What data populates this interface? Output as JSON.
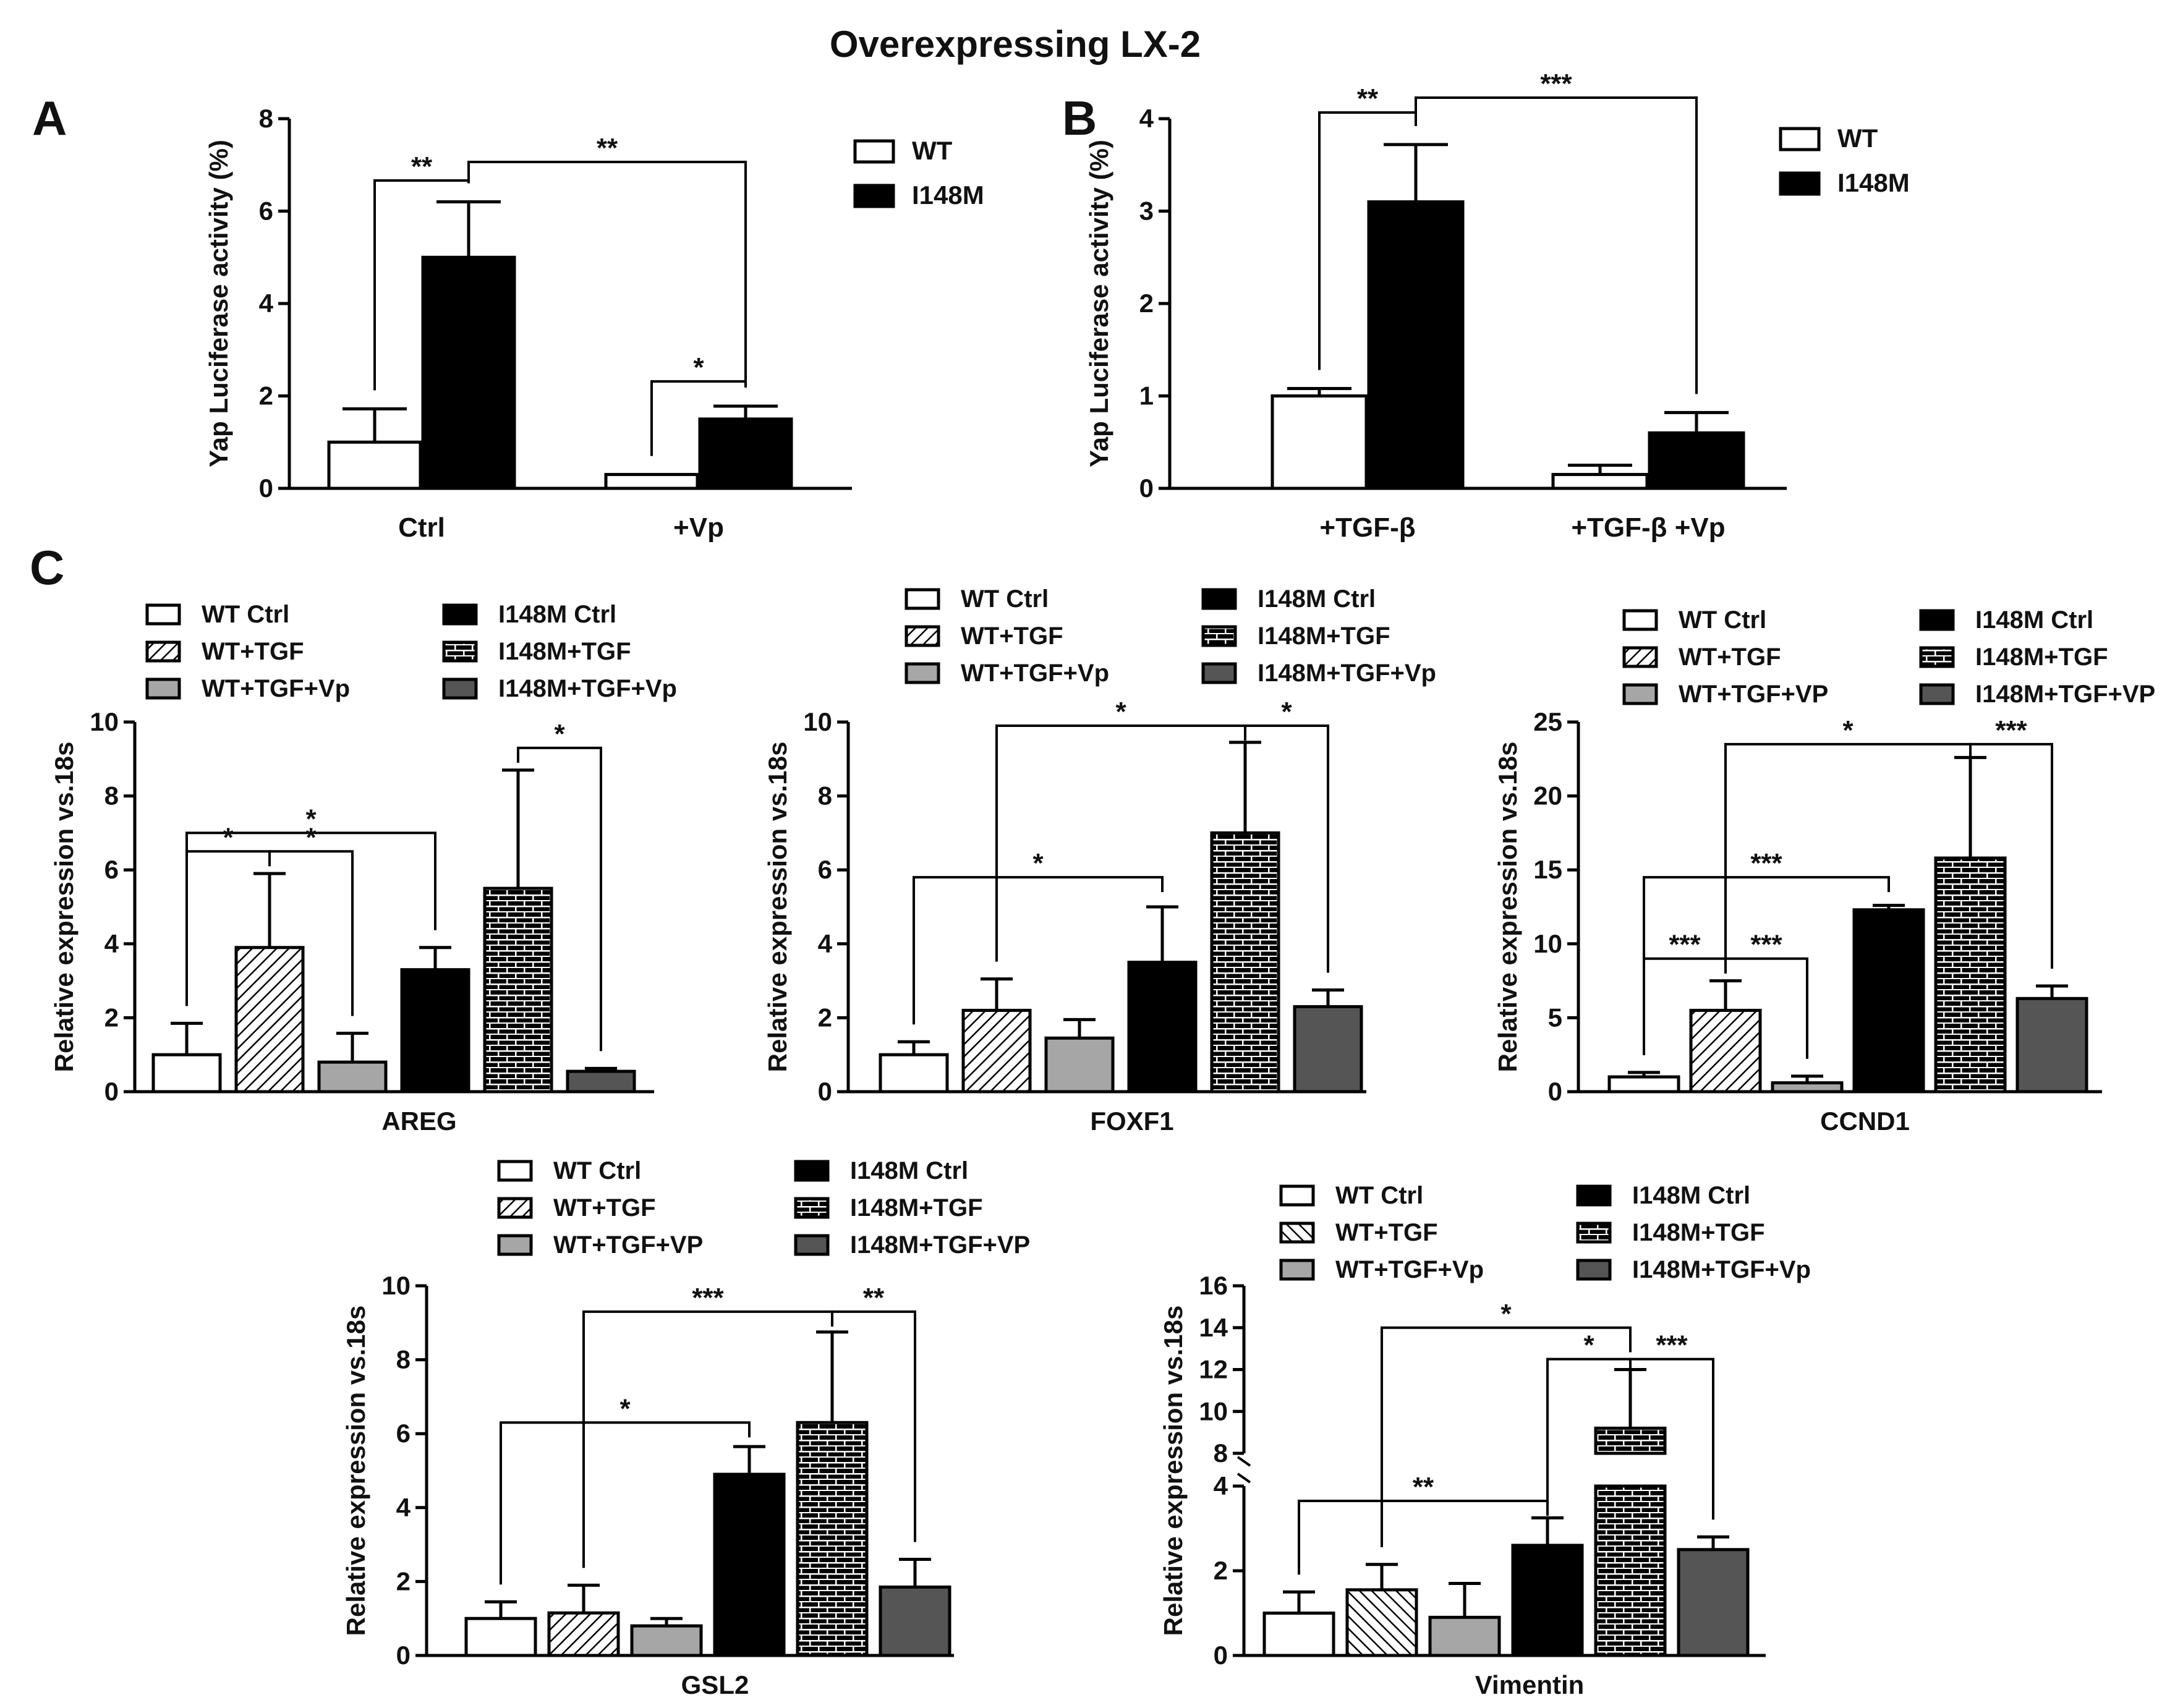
{
  "figure_title": "Overexpressing LX-2",
  "panel_letters": [
    "A",
    "B",
    "C"
  ],
  "chart_data": [
    {
      "id": "A",
      "type": "bar",
      "ylabel": "Yap Luciferase activity (%)",
      "ylim": [
        0,
        8
      ],
      "yticks": [
        "0",
        "2",
        "4",
        "6",
        "8"
      ],
      "categories": [
        "Ctrl",
        "+Vp"
      ],
      "series": [
        {
          "name": "WT",
          "values": [
            1.0,
            0.3
          ],
          "errors": [
            0.72,
            0.0
          ]
        },
        {
          "name": "I148M",
          "values": [
            5.0,
            1.5
          ],
          "errors": [
            1.2,
            0.28
          ]
        }
      ],
      "annotations": [
        {
          "text": "**",
          "from": [
            0,
            0
          ],
          "to": [
            0,
            1
          ]
        },
        {
          "text": "**",
          "from": [
            0,
            1
          ],
          "to": [
            1,
            1
          ]
        },
        {
          "text": "*",
          "from": [
            1,
            0
          ],
          "to": [
            1,
            1
          ]
        }
      ]
    },
    {
      "id": "B",
      "type": "bar",
      "ylabel": "Yap Luciferase activity (%)",
      "ylim": [
        0,
        4
      ],
      "yticks": [
        "0",
        "1",
        "2",
        "3",
        "4"
      ],
      "categories": [
        "+TGF-β",
        "+TGF-β +Vp"
      ],
      "series": [
        {
          "name": "WT",
          "values": [
            1.0,
            0.15
          ],
          "errors": [
            0.08,
            0.1
          ]
        },
        {
          "name": "I148M",
          "values": [
            3.1,
            0.6
          ],
          "errors": [
            0.62,
            0.22
          ]
        }
      ],
      "annotations": [
        {
          "text": "**",
          "from": [
            0,
            0
          ],
          "to": [
            0,
            1
          ]
        },
        {
          "text": "***",
          "from": [
            0,
            1
          ],
          "to": [
            1,
            1
          ]
        }
      ]
    },
    {
      "id": "AREG",
      "type": "bar",
      "xlabel": "AREG",
      "ylabel": "Relative expression vs.18s",
      "ylim": [
        0,
        10
      ],
      "yticks": [
        "0",
        "2",
        "4",
        "6",
        "8",
        "10"
      ],
      "series": [
        {
          "name": "WT Ctrl",
          "value": 1.0,
          "error": 0.85
        },
        {
          "name": "WT+TGF",
          "value": 3.9,
          "error": 2.0
        },
        {
          "name": "WT+TGF+Vp",
          "value": 0.8,
          "error": 0.78
        },
        {
          "name": "I148M Ctrl",
          "value": 3.3,
          "error": 0.6
        },
        {
          "name": "I148M+TGF",
          "value": 5.5,
          "error": 3.2
        },
        {
          "name": "I148M+TGF+Vp",
          "value": 0.55,
          "error": 0.08
        }
      ],
      "annotations": [
        {
          "text": "*",
          "from": 0,
          "to": 3,
          "y": 7.0
        },
        {
          "text": "*",
          "from": 0,
          "to": 1,
          "y": 6.5
        },
        {
          "text": "*",
          "from": 1,
          "to": 2,
          "y": 6.5
        },
        {
          "text": "*",
          "from": 4,
          "to": 5,
          "y": 9.3
        }
      ]
    },
    {
      "id": "FOXF1",
      "type": "bar",
      "xlabel": "FOXF1",
      "ylabel": "Relative expression vs.18s",
      "ylim": [
        0,
        10
      ],
      "yticks": [
        "0",
        "2",
        "4",
        "6",
        "8",
        "10"
      ],
      "series": [
        {
          "name": "WT Ctrl",
          "value": 1.0,
          "error": 0.35
        },
        {
          "name": "WT+TGF",
          "value": 2.2,
          "error": 0.85
        },
        {
          "name": "WT+TGF+Vp",
          "value": 1.45,
          "error": 0.5
        },
        {
          "name": "I148M Ctrl",
          "value": 3.5,
          "error": 1.5
        },
        {
          "name": "I148M+TGF",
          "value": 7.0,
          "error": 2.45
        },
        {
          "name": "I148M+TGF+Vp",
          "value": 2.3,
          "error": 0.45
        }
      ],
      "annotations": [
        {
          "text": "*",
          "from": 1,
          "to": 4,
          "y": 9.9
        },
        {
          "text": "*",
          "from": 4,
          "to": 5,
          "y": 9.9
        },
        {
          "text": "*",
          "from": 0,
          "to": 3,
          "y": 5.8
        }
      ]
    },
    {
      "id": "CCND1",
      "type": "bar",
      "xlabel": "CCND1",
      "ylabel": "Relative expression vs.18s",
      "ylim": [
        0,
        25
      ],
      "yticks": [
        "0",
        "5",
        "10",
        "15",
        "20",
        "25"
      ],
      "series": [
        {
          "name": "WT Ctrl",
          "value": 1.0,
          "error": 0.3
        },
        {
          "name": "WT+TGF",
          "value": 5.5,
          "error": 2.0
        },
        {
          "name": "WT+TGF+VP",
          "value": 0.6,
          "error": 0.45
        },
        {
          "name": "I148M Ctrl",
          "value": 12.3,
          "error": 0.3
        },
        {
          "name": "I148M+TGF",
          "value": 15.8,
          "error": 6.8
        },
        {
          "name": "I148M+TGF+VP",
          "value": 6.3,
          "error": 0.85
        }
      ],
      "annotations": [
        {
          "text": "*",
          "from": 1,
          "to": 4,
          "y": 23.5
        },
        {
          "text": "***",
          "from": 4,
          "to": 5,
          "y": 23.5
        },
        {
          "text": "***",
          "from": 0,
          "to": 3,
          "y": 14.5
        },
        {
          "text": "***",
          "from": 0,
          "to": 1,
          "y": 9.0
        },
        {
          "text": "***",
          "from": 1,
          "to": 2,
          "y": 9.0
        }
      ]
    },
    {
      "id": "GSL2",
      "type": "bar",
      "xlabel": "GSL2",
      "ylabel": "Relative expression vs.18s",
      "ylim": [
        0,
        10
      ],
      "yticks": [
        "0",
        "2",
        "4",
        "6",
        "8",
        "10"
      ],
      "series": [
        {
          "name": "WT Ctrl",
          "value": 1.0,
          "error": 0.45
        },
        {
          "name": "WT+TGF",
          "value": 1.15,
          "error": 0.75
        },
        {
          "name": "WT+TGF+VP",
          "value": 0.8,
          "error": 0.2
        },
        {
          "name": "I148M Ctrl",
          "value": 4.9,
          "error": 0.75
        },
        {
          "name": "I148M+TGF",
          "value": 6.3,
          "error": 2.45
        },
        {
          "name": "I148M+TGF+VP",
          "value": 1.85,
          "error": 0.75
        }
      ],
      "annotations": [
        {
          "text": "***",
          "from": 1,
          "to": 4,
          "y": 9.3
        },
        {
          "text": "**",
          "from": 4,
          "to": 5,
          "y": 9.3
        },
        {
          "text": "*",
          "from": 0,
          "to": 3,
          "y": 6.3
        }
      ]
    },
    {
      "id": "Vimentin",
      "type": "bar",
      "xlabel": "Vimentin",
      "ylabel": "Relative expression vs.18s",
      "ylim": [
        0,
        16
      ],
      "axis_break": [
        4,
        8
      ],
      "yticks": [
        "0",
        "2",
        "4",
        "8",
        "10",
        "12",
        "14",
        "16"
      ],
      "series": [
        {
          "name": "WT Ctrl",
          "value": 1.0,
          "error": 0.5
        },
        {
          "name": "WT+TGF",
          "value": 1.55,
          "error": 0.6
        },
        {
          "name": "WT+TGF+Vp",
          "value": 0.9,
          "error": 0.8
        },
        {
          "name": "I148M Ctrl",
          "value": 2.6,
          "error": 0.65
        },
        {
          "name": "I148M+TGF",
          "value": 9.2,
          "error": 2.8
        },
        {
          "name": "I148M+TGF+Vp",
          "value": 2.5,
          "error": 0.3
        }
      ],
      "annotations": [
        {
          "text": "*",
          "from": 1,
          "to": 4,
          "y": 14.0
        },
        {
          "text": "*",
          "from": 3,
          "to": 4,
          "y": 12.5
        },
        {
          "text": "***",
          "from": 4,
          "to": 5,
          "y": 12.5
        },
        {
          "text": "**",
          "from": 0,
          "to": 3,
          "y": 3.65
        }
      ]
    }
  ],
  "colors": {
    "wt_ctrl": "#ffffff",
    "tgf_vp": "#a6a6a6",
    "mut_ctrl": "#000000",
    "mut_tgf_vp": "#555555",
    "stroke": "#000000"
  }
}
